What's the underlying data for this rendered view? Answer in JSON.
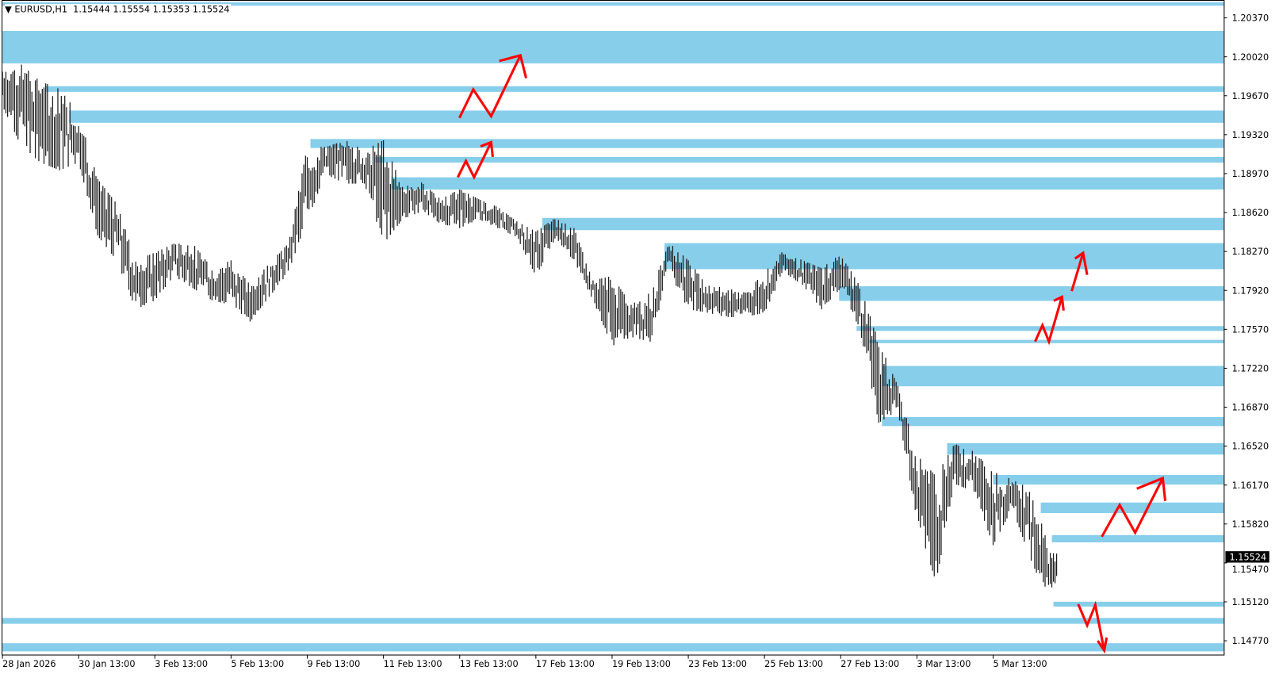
{
  "header": {
    "menu_icon": "triangle-down-icon",
    "symbol": "EURUSD,H1",
    "open": "1.15444",
    "high": "1.15554",
    "low": "1.15353",
    "close": "1.15524"
  },
  "colors": {
    "zone": "#87CEEB",
    "bars": "#1a1a1a",
    "arrows": "#FF0000",
    "price_box_bg": "#000000",
    "price_box_text": "#FFFFFF"
  },
  "chart_data": {
    "type": "bar",
    "symbol": "EURUSD",
    "timeframe": "H1",
    "current_price": "1.15524",
    "ylim": [
      1.1465,
      1.2053
    ],
    "y_ticks": [
      "1.20370",
      "1.20020",
      "1.19670",
      "1.19320",
      "1.18970",
      "1.18620",
      "1.18270",
      "1.17920",
      "1.17570",
      "1.17220",
      "1.16870",
      "1.16520",
      "1.16170",
      "1.15820",
      "1.15470",
      "1.15120",
      "1.14770"
    ],
    "x_ticks": [
      "28 Jan 2026",
      "30 Jan 13:00",
      "3 Feb 13:00",
      "5 Feb 13:00",
      "9 Feb 13:00",
      "11 Feb 13:00",
      "13 Feb 13:00",
      "17 Feb 13:00",
      "19 Feb 13:00",
      "23 Feb 13:00",
      "25 Feb 13:00",
      "27 Feb 13:00",
      "3 Mar 13:00",
      "5 Mar 13:00"
    ],
    "grid": false,
    "bars": [
      {
        "t": "28 Jan 13:00",
        "h": 1.1991,
        "l": 1.1958
      },
      {
        "t": "29 Jan 01:00",
        "h": 1.1995,
        "l": 1.1921
      },
      {
        "t": "29 Jan 13:00",
        "h": 1.198,
        "l": 1.1907
      },
      {
        "t": "30 Jan 01:00",
        "h": 1.1973,
        "l": 1.19
      },
      {
        "t": "30 Jan 13:00",
        "h": 1.1951,
        "l": 1.1907
      },
      {
        "t": "2 Feb 01:00",
        "h": 1.1892,
        "l": 1.1841
      },
      {
        "t": "2 Feb 13:00",
        "h": 1.187,
        "l": 1.1819
      },
      {
        "t": "3 Feb 01:00",
        "h": 1.1819,
        "l": 1.1775
      },
      {
        "t": "3 Feb 13:00",
        "h": 1.1826,
        "l": 1.1783
      },
      {
        "t": "4 Feb 01:00",
        "h": 1.1834,
        "l": 1.1805
      },
      {
        "t": "4 Feb 13:00",
        "h": 1.1834,
        "l": 1.1794
      },
      {
        "t": "5 Feb 01:00",
        "h": 1.1812,
        "l": 1.1783
      },
      {
        "t": "5 Feb 13:00",
        "h": 1.1819,
        "l": 1.1779
      },
      {
        "t": "6 Feb 01:00",
        "h": 1.1797,
        "l": 1.1764
      },
      {
        "t": "6 Feb 13:00",
        "h": 1.1816,
        "l": 1.1786
      },
      {
        "t": "9 Feb 01:00",
        "h": 1.1834,
        "l": 1.1808
      },
      {
        "t": "9 Feb 13:00",
        "h": 1.1921,
        "l": 1.1856
      },
      {
        "t": "10 Feb 01:00",
        "h": 1.1921,
        "l": 1.1896
      },
      {
        "t": "10 Feb 13:00",
        "h": 1.1927,
        "l": 1.1888
      },
      {
        "t": "11 Feb 01:00",
        "h": 1.1918,
        "l": 1.1888
      },
      {
        "t": "11 Feb 13:00",
        "h": 1.1927,
        "l": 1.1834
      },
      {
        "t": "12 Feb 01:00",
        "h": 1.1885,
        "l": 1.1856
      },
      {
        "t": "12 Feb 13:00",
        "h": 1.1889,
        "l": 1.1863
      },
      {
        "t": "13 Feb 01:00",
        "h": 1.1874,
        "l": 1.1852
      },
      {
        "t": "13 Feb 13:00",
        "h": 1.1883,
        "l": 1.1848
      },
      {
        "t": "16 Feb 01:00",
        "h": 1.1874,
        "l": 1.1856
      },
      {
        "t": "16 Feb 13:00",
        "h": 1.1867,
        "l": 1.1848
      },
      {
        "t": "17 Feb 01:00",
        "h": 1.1854,
        "l": 1.184
      },
      {
        "t": "17 Feb 13:00",
        "h": 1.1845,
        "l": 1.1805
      },
      {
        "t": "18 Feb 01:00",
        "h": 1.1857,
        "l": 1.1837
      },
      {
        "t": "18 Feb 13:00",
        "h": 1.1848,
        "l": 1.1819
      },
      {
        "t": "19 Feb 01:00",
        "h": 1.1801,
        "l": 1.1783
      },
      {
        "t": "19 Feb 13:00",
        "h": 1.1805,
        "l": 1.1742
      },
      {
        "t": "20 Feb 01:00",
        "h": 1.1779,
        "l": 1.175
      },
      {
        "t": "20 Feb 13:00",
        "h": 1.179,
        "l": 1.1746
      },
      {
        "t": "23 Feb 01:00",
        "h": 1.1835,
        "l": 1.1808
      },
      {
        "t": "23 Feb 13:00",
        "h": 1.1819,
        "l": 1.1775
      },
      {
        "t": "24 Feb 01:00",
        "h": 1.1797,
        "l": 1.1772
      },
      {
        "t": "24 Feb 13:00",
        "h": 1.1794,
        "l": 1.1768
      },
      {
        "t": "25 Feb 01:00",
        "h": 1.179,
        "l": 1.1768
      },
      {
        "t": "25 Feb 13:00",
        "h": 1.1808,
        "l": 1.1772
      },
      {
        "t": "26 Feb 01:00",
        "h": 1.1828,
        "l": 1.1808
      },
      {
        "t": "26 Feb 13:00",
        "h": 1.1819,
        "l": 1.1797
      },
      {
        "t": "27 Feb 01:00",
        "h": 1.1812,
        "l": 1.1775
      },
      {
        "t": "27 Feb 13:00",
        "h": 1.1825,
        "l": 1.1794
      },
      {
        "t": "2 Mar 01:00",
        "h": 1.1796,
        "l": 1.1757
      },
      {
        "t": "2 Mar 13:00",
        "h": 1.1746,
        "l": 1.1673
      },
      {
        "t": "3 Mar 01:00",
        "h": 1.1706,
        "l": 1.1684
      },
      {
        "t": "3 Mar 13:00",
        "h": 1.1644,
        "l": 1.1585
      },
      {
        "t": "4 Mar 01:00",
        "h": 1.1625,
        "l": 1.153
      },
      {
        "t": "4 Mar 13:00",
        "h": 1.1655,
        "l": 1.1618
      },
      {
        "t": "5 Mar 01:00",
        "h": 1.1647,
        "l": 1.1611
      },
      {
        "t": "5 Mar 13:00",
        "h": 1.1629,
        "l": 1.1563
      },
      {
        "t": "6 Mar 01:00",
        "h": 1.1622,
        "l": 1.1596
      },
      {
        "t": "6 Mar 13:00",
        "h": 1.1614,
        "l": 1.1549
      },
      {
        "t": "9 Mar 01:00",
        "h": 1.1556,
        "l": 1.1509
      },
      {
        "t": "9 Mar 05:00",
        "h": 1.15554,
        "l": 1.15353
      }
    ],
    "zones": [
      {
        "start": "28 Jan 13:00",
        "top": 1.2051,
        "bottom": 1.2048
      },
      {
        "start": "28 Jan 13:00",
        "top": 1.20253,
        "bottom": 1.19961
      },
      {
        "start": "29 Jan 16:00",
        "top": 1.19756,
        "bottom": 1.19705
      },
      {
        "start": "30 Jan 07:00",
        "top": 1.19537,
        "bottom": 1.19427
      },
      {
        "start": "9 Feb 15:00",
        "top": 1.19281,
        "bottom": 1.192
      },
      {
        "start": "11 Feb 08:00",
        "top": 1.1912,
        "bottom": 1.19069
      },
      {
        "start": "11 Feb 18:00",
        "top": 1.18937,
        "bottom": 1.18827
      },
      {
        "start": "17 Feb 17:00",
        "top": 1.18572,
        "bottom": 1.18462
      },
      {
        "start": "20 Feb 22:00",
        "top": 1.18345,
        "bottom": 1.18111
      },
      {
        "start": "27 Feb 12:00",
        "top": 1.17958,
        "bottom": 1.17826
      },
      {
        "start": "27 Feb 23:00",
        "top": 1.17599,
        "bottom": 1.17556
      },
      {
        "start": "2 Mar 07:00",
        "top": 1.17475,
        "bottom": 1.17446
      },
      {
        "start": "2 Mar 15:00",
        "top": 1.17241,
        "bottom": 1.17058
      },
      {
        "start": "2 Mar 15:00",
        "top": 1.16781,
        "bottom": 1.167
      },
      {
        "start": "4 Mar 08:00",
        "top": 1.16547,
        "bottom": 1.16444
      },
      {
        "start": "5 Mar 13:00",
        "top": 1.16261,
        "bottom": 1.16174
      },
      {
        "start": "6 Mar 19:00",
        "top": 1.16013,
        "bottom": 1.15918
      },
      {
        "start": "9 Mar 02:00",
        "top": 1.1572,
        "bottom": 1.15655
      },
      {
        "start": "9 Mar 03:00",
        "top": 1.15121,
        "bottom": 1.15077
      },
      {
        "start": "28 Jan 13:00",
        "top": 1.14975,
        "bottom": 1.14923
      },
      {
        "start": "28 Jan 13:00",
        "top": 1.14748,
        "bottom": 1.14675
      }
    ]
  }
}
